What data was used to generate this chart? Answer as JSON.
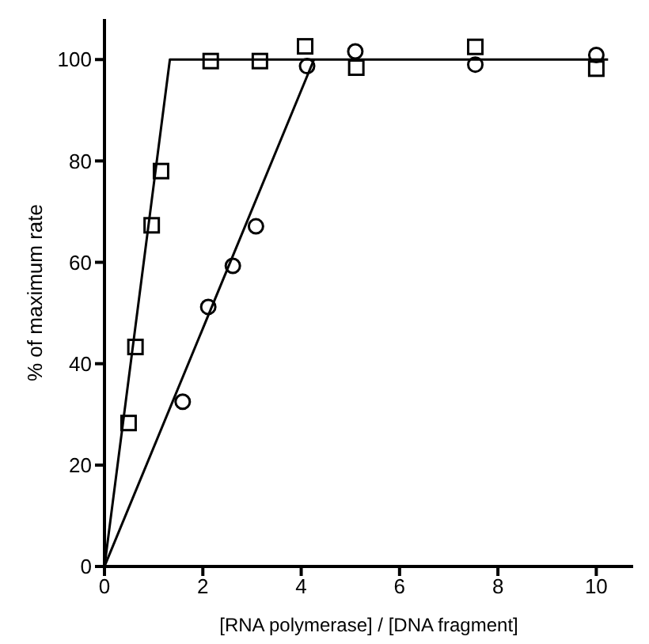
{
  "chart_data": {
    "type": "scatter",
    "xlabel": "[RNA polymerase] / [DNA fragment]",
    "ylabel": "% of maximum rate",
    "xlim": [
      0,
      10.75
    ],
    "ylim": [
      0,
      108
    ],
    "xticks": [
      0,
      2,
      4,
      6,
      8,
      10
    ],
    "yticks": [
      0,
      20,
      40,
      60,
      80,
      100
    ],
    "grid": false,
    "series": [
      {
        "marker": "square",
        "color": "#000000",
        "x": [
          0.49,
          0.63,
          0.96,
          1.15,
          2.16,
          3.16,
          4.08,
          5.12,
          7.54,
          10.0
        ],
        "values": [
          28.3,
          43.3,
          67.3,
          78,
          99.7,
          99.7,
          102.6,
          98.4,
          102.5,
          98.2
        ]
      },
      {
        "marker": "circle",
        "color": "#000000",
        "x": [
          1.59,
          2.11,
          2.61,
          3.08,
          4.12,
          5.1,
          7.54,
          10.0
        ],
        "values": [
          32.5,
          51.2,
          59.3,
          67.1,
          98.7,
          101.6,
          99,
          100.9
        ]
      },
      {
        "type": "line",
        "marker": "none",
        "line_style": "solid",
        "color": "#000000",
        "x": [
          0,
          1.33,
          10.24
        ],
        "values": [
          0,
          100,
          100
        ]
      },
      {
        "type": "line",
        "marker": "none",
        "line_style": "solid",
        "color": "#000000",
        "x": [
          0,
          4.26
        ],
        "values": [
          0,
          100
        ]
      }
    ]
  }
}
